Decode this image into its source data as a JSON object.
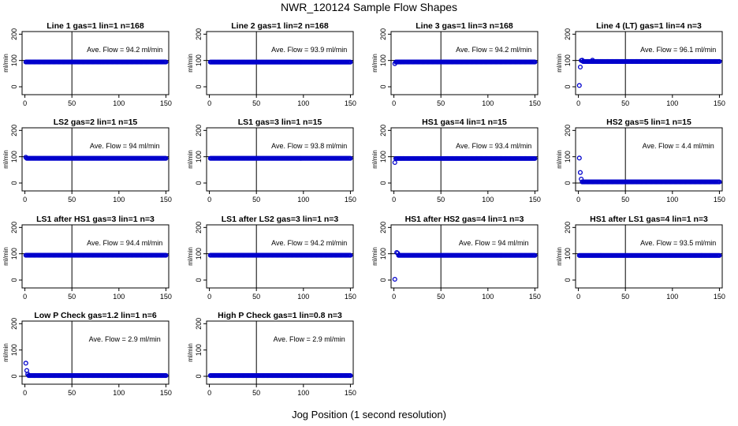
{
  "main_title": "NWR_120124  Sample Flow Shapes",
  "x_caption": "Jog Position (1 second resolution)",
  "colors": {
    "points": "#0000cc",
    "axis": "#000000",
    "background": "#ffffff"
  },
  "chart_data": [
    {
      "type": "scatter",
      "title": "Line 1 gas=1 lin=1 n=168",
      "ylabel": "ml/min",
      "annotation": "Ave. Flow = 94.2  ml/min",
      "xlim": [
        0,
        150
      ],
      "ylim": [
        -30,
        210
      ],
      "xticks": [
        0,
        50,
        100,
        150
      ],
      "yticks": [
        0,
        100,
        200
      ],
      "hline": 100,
      "vline": 50,
      "steady_y": 94.2,
      "x_range": [
        1,
        150
      ],
      "initial_points": []
    },
    {
      "type": "scatter",
      "title": "Line 2 gas=1 lin=2 n=168",
      "ylabel": "ml/min",
      "annotation": "Ave. Flow = 93.9  ml/min",
      "xlim": [
        0,
        150
      ],
      "ylim": [
        -30,
        210
      ],
      "xticks": [
        0,
        50,
        100,
        150
      ],
      "yticks": [
        0,
        100,
        200
      ],
      "hline": 100,
      "vline": 50,
      "steady_y": 93.9,
      "x_range": [
        1,
        150
      ],
      "initial_points": []
    },
    {
      "type": "scatter",
      "title": "Line 3 gas=1 lin=3 n=168",
      "ylabel": "ml/min",
      "annotation": "Ave. Flow = 94.2  ml/min",
      "xlim": [
        0,
        150
      ],
      "ylim": [
        -30,
        210
      ],
      "xticks": [
        0,
        50,
        100,
        150
      ],
      "yticks": [
        0,
        100,
        200
      ],
      "hline": 100,
      "vline": 50,
      "steady_y": 94.2,
      "x_range": [
        2,
        150
      ],
      "initial_points": [
        [
          1,
          88
        ]
      ]
    },
    {
      "type": "scatter",
      "title": "Line 4 (LT) gas=1 lin=4 n=3",
      "ylabel": "ml/min",
      "annotation": "Ave. Flow = 96.1  ml/min",
      "xlim": [
        0,
        150
      ],
      "ylim": [
        -30,
        210
      ],
      "xticks": [
        0,
        50,
        100,
        150
      ],
      "yticks": [
        0,
        100,
        200
      ],
      "hline": 100,
      "vline": 50,
      "steady_y": 96.1,
      "x_range": [
        5,
        150
      ],
      "initial_points": [
        [
          1,
          5
        ],
        [
          2,
          75
        ],
        [
          3,
          100
        ],
        [
          4,
          101
        ],
        [
          15,
          101
        ]
      ]
    },
    {
      "type": "scatter",
      "title": "LS2 gas=2 lin=1 n=15",
      "ylabel": "ml/min",
      "annotation": "Ave. Flow = 94  ml/min",
      "xlim": [
        0,
        150
      ],
      "ylim": [
        -30,
        210
      ],
      "xticks": [
        0,
        50,
        100,
        150
      ],
      "yticks": [
        0,
        100,
        200
      ],
      "hline": 100,
      "vline": 50,
      "steady_y": 94,
      "x_range": [
        2,
        150
      ],
      "initial_points": [
        [
          1,
          98
        ]
      ]
    },
    {
      "type": "scatter",
      "title": "LS1 gas=3 lin=1 n=15",
      "ylabel": "ml/min",
      "annotation": "Ave. Flow = 93.8  ml/min",
      "xlim": [
        0,
        150
      ],
      "ylim": [
        -30,
        210
      ],
      "xticks": [
        0,
        50,
        100,
        150
      ],
      "yticks": [
        0,
        100,
        200
      ],
      "hline": 100,
      "vline": 50,
      "steady_y": 93.8,
      "x_range": [
        1,
        150
      ],
      "initial_points": []
    },
    {
      "type": "scatter",
      "title": "HS1 gas=4 lin=1 n=15",
      "ylabel": "ml/min",
      "annotation": "Ave. Flow = 93.4  ml/min",
      "xlim": [
        0,
        150
      ],
      "ylim": [
        -30,
        210
      ],
      "xticks": [
        0,
        50,
        100,
        150
      ],
      "yticks": [
        0,
        100,
        200
      ],
      "hline": 100,
      "vline": 50,
      "steady_y": 93.4,
      "x_range": [
        2,
        150
      ],
      "initial_points": [
        [
          1,
          78
        ]
      ]
    },
    {
      "type": "scatter",
      "title": "HS2 gas=5 lin=1 n=15",
      "ylabel": "ml/min",
      "annotation": "Ave. Flow = 4.4  ml/min",
      "xlim": [
        0,
        150
      ],
      "ylim": [
        -30,
        210
      ],
      "xticks": [
        0,
        50,
        100,
        150
      ],
      "yticks": [
        0,
        100,
        200
      ],
      "hline": 0,
      "vline": 50,
      "steady_y": 4.4,
      "x_range": [
        4,
        150
      ],
      "initial_points": [
        [
          1,
          95
        ],
        [
          2,
          40
        ],
        [
          3,
          15
        ]
      ]
    },
    {
      "type": "scatter",
      "title": "LS1 after HS1 gas=3 lin=1 n=3",
      "ylabel": "ml/min",
      "annotation": "Ave. Flow = 94.4  ml/min",
      "xlim": [
        0,
        150
      ],
      "ylim": [
        -30,
        210
      ],
      "xticks": [
        0,
        50,
        100,
        150
      ],
      "yticks": [
        0,
        100,
        200
      ],
      "hline": 100,
      "vline": 50,
      "steady_y": 94.4,
      "x_range": [
        1,
        150
      ],
      "initial_points": []
    },
    {
      "type": "scatter",
      "title": "LS1 after LS2 gas=3 lin=1 n=3",
      "ylabel": "ml/min",
      "annotation": "Ave. Flow = 94.2  ml/min",
      "xlim": [
        0,
        150
      ],
      "ylim": [
        -30,
        210
      ],
      "xticks": [
        0,
        50,
        100,
        150
      ],
      "yticks": [
        0,
        100,
        200
      ],
      "hline": 100,
      "vline": 50,
      "steady_y": 94.2,
      "x_range": [
        1,
        150
      ],
      "initial_points": []
    },
    {
      "type": "scatter",
      "title": "HS1 after HS2 gas=4 lin=1 n=3",
      "ylabel": "ml/min",
      "annotation": "Ave. Flow = 94  ml/min",
      "xlim": [
        0,
        150
      ],
      "ylim": [
        -30,
        210
      ],
      "xticks": [
        0,
        50,
        100,
        150
      ],
      "yticks": [
        0,
        100,
        200
      ],
      "hline": 100,
      "vline": 50,
      "steady_y": 94,
      "x_range": [
        5,
        150
      ],
      "initial_points": [
        [
          1,
          3
        ],
        [
          3,
          105
        ],
        [
          4,
          102
        ]
      ]
    },
    {
      "type": "scatter",
      "title": "HS1 after LS1 gas=4 lin=1 n=3",
      "ylabel": "ml/min",
      "annotation": "Ave. Flow = 93.5  ml/min",
      "xlim": [
        0,
        150
      ],
      "ylim": [
        -30,
        210
      ],
      "xticks": [
        0,
        50,
        100,
        150
      ],
      "yticks": [
        0,
        100,
        200
      ],
      "hline": 100,
      "vline": 50,
      "steady_y": 93.5,
      "x_range": [
        1,
        150
      ],
      "initial_points": []
    },
    {
      "type": "scatter",
      "title": "Low P Check gas=1.2 lin=1 n=6",
      "ylabel": "ml/min",
      "annotation": "Ave. Flow = 2.9  ml/min",
      "xlim": [
        0,
        150
      ],
      "ylim": [
        -30,
        210
      ],
      "xticks": [
        0,
        50,
        100,
        150
      ],
      "yticks": [
        0,
        100,
        200
      ],
      "hline": 0,
      "vline": 50,
      "steady_y": 2.9,
      "x_range": [
        4,
        150
      ],
      "initial_points": [
        [
          1,
          50
        ],
        [
          2,
          22
        ],
        [
          3,
          8
        ]
      ]
    },
    {
      "type": "scatter",
      "title": "High P Check gas=1 lin=0.8 n=3",
      "ylabel": "ml/min",
      "annotation": "Ave. Flow = 2.9  ml/min",
      "xlim": [
        0,
        150
      ],
      "ylim": [
        -30,
        210
      ],
      "xticks": [
        0,
        50,
        100,
        150
      ],
      "yticks": [
        0,
        100,
        200
      ],
      "hline": 0,
      "vline": 50,
      "steady_y": 2.9,
      "x_range": [
        1,
        150
      ],
      "initial_points": []
    }
  ]
}
